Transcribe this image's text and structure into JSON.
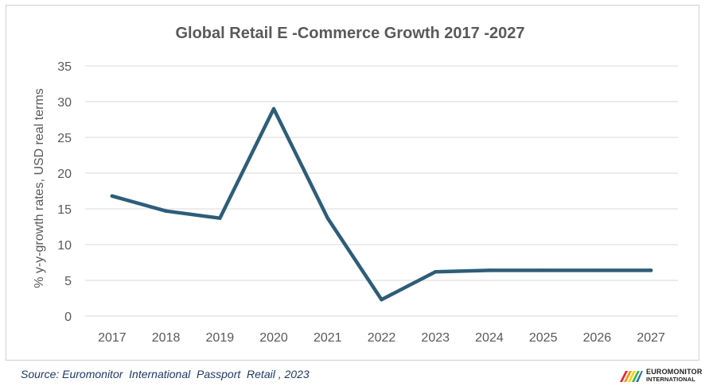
{
  "chart_data": {
    "type": "line",
    "title": "Global Retail E -Commerce Growth 2017 -2027",
    "xlabel": "",
    "ylabel": "% y-y-growth rates, USD real terms",
    "categories": [
      "2017",
      "2018",
      "2019",
      "2020",
      "2021",
      "2022",
      "2023",
      "2024",
      "2025",
      "2026",
      "2027"
    ],
    "series": [
      {
        "name": "Global Retail E-Commerce Growth",
        "values": [
          16.8,
          14.7,
          13.7,
          29.0,
          13.7,
          2.3,
          6.2,
          6.4,
          6.4,
          6.4,
          6.4
        ],
        "color": "#2e5d78"
      }
    ],
    "ylim": [
      0,
      35
    ],
    "yticks": [
      0,
      5,
      10,
      15,
      20,
      25,
      30,
      35
    ],
    "grid": true,
    "legend": "none"
  },
  "footer": {
    "source": "Source: Euromonitor  International  Passport  Retail , 2023",
    "logo_line1": "EUROMONITOR",
    "logo_line2": "INTERNATIONAL",
    "logo_name": "euromonitor-logo"
  },
  "colors": {
    "line": "#2e5d78",
    "grid": "#d9d9d9",
    "text": "#595959",
    "source_text": "#1f3864"
  }
}
